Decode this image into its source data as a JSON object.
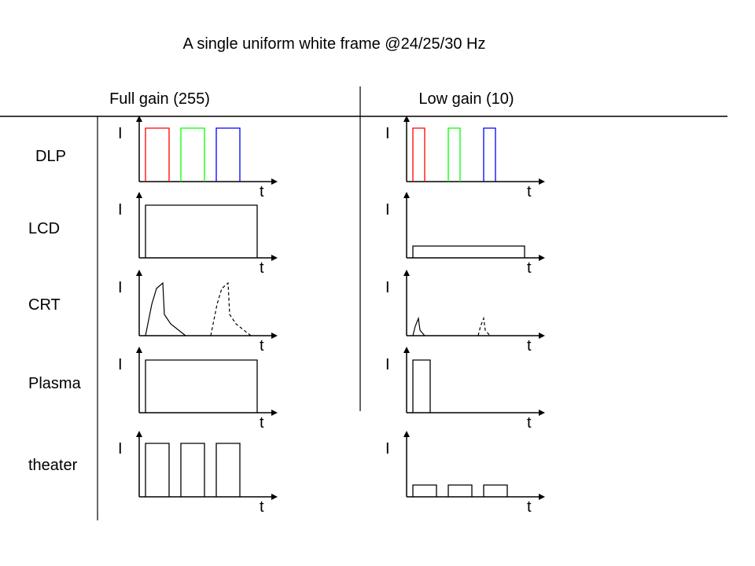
{
  "title": "A single uniform white frame @24/25/30 Hz",
  "columns": [
    {
      "label": "Full gain (255)"
    },
    {
      "label": "Low gain (10)"
    }
  ],
  "rows": [
    {
      "label": "DLP"
    },
    {
      "label": "LCD"
    },
    {
      "label": "CRT"
    },
    {
      "label": "Plasma"
    },
    {
      "label": "theater"
    }
  ],
  "axis": {
    "y_label": "I",
    "x_label": "t"
  },
  "colors": {
    "red": "#ff0000",
    "green": "#00ff00",
    "blue": "#0000ff",
    "line": "#000000"
  }
}
